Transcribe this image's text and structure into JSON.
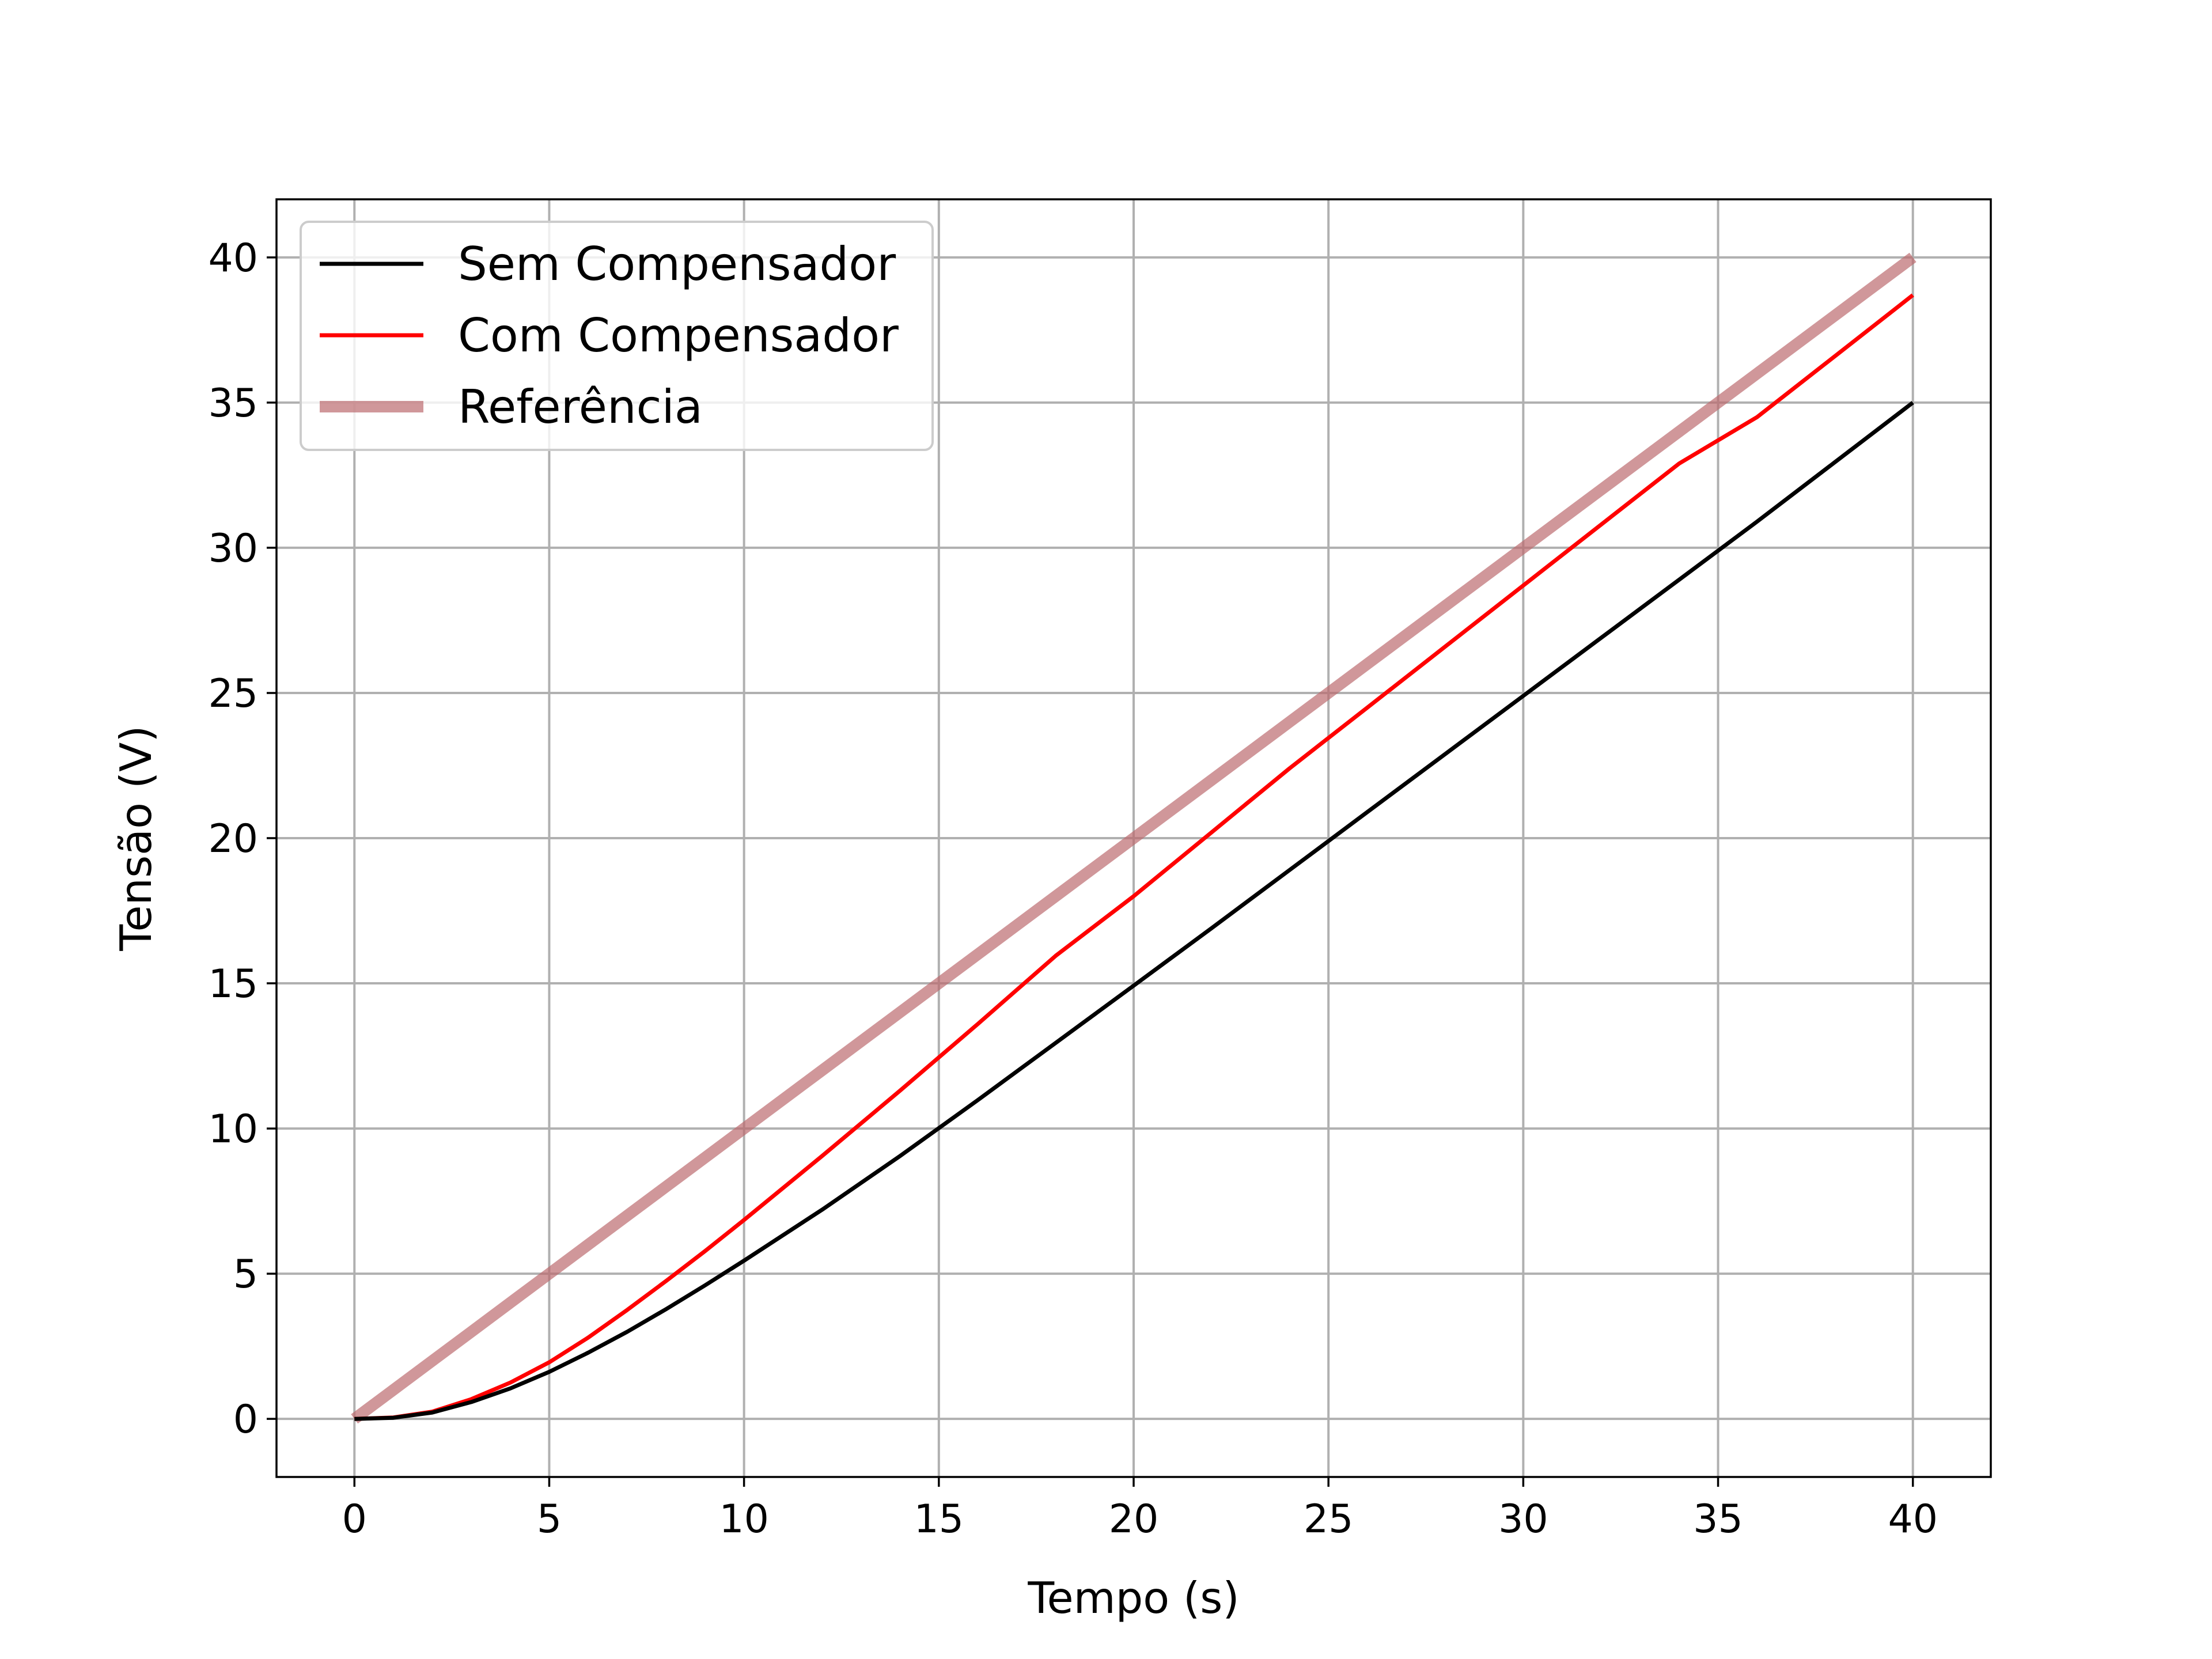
{
  "chart_data": {
    "type": "line",
    "xlabel": "Tempo (s)",
    "ylabel": "Tensão (V)",
    "xlim": [
      -2,
      42
    ],
    "ylim": [
      -2,
      42
    ],
    "x_ticks": [
      "0",
      "5",
      "10",
      "15",
      "20",
      "25",
      "30",
      "35",
      "40"
    ],
    "y_ticks": [
      "0",
      "5",
      "10",
      "15",
      "20",
      "25",
      "30",
      "35",
      "40"
    ],
    "grid": true,
    "legend_position": "top-left",
    "x": [
      0,
      1,
      2,
      3,
      4,
      5,
      6,
      7,
      8,
      9,
      10,
      12,
      14,
      16,
      18,
      20,
      22,
      24,
      26,
      28,
      30,
      32,
      34,
      36,
      38,
      40
    ],
    "series": [
      {
        "name": "Sem Compensador",
        "color": "#000000",
        "values": [
          0,
          0.04,
          0.22,
          0.58,
          1.05,
          1.62,
          2.28,
          3.0,
          3.78,
          4.6,
          5.45,
          7.2,
          9.05,
          10.98,
          12.95,
          14.92,
          16.9,
          18.9,
          20.9,
          22.9,
          24.9,
          26.9,
          28.9,
          30.9,
          32.95,
          35.0
        ]
      },
      {
        "name": "Com Compensador",
        "color": "#ff0000",
        "values": [
          0,
          0.05,
          0.25,
          0.68,
          1.25,
          1.95,
          2.8,
          3.75,
          4.75,
          5.78,
          6.85,
          9.05,
          11.3,
          13.6,
          15.95,
          18.0,
          20.2,
          22.4,
          24.5,
          26.6,
          28.7,
          30.8,
          32.9,
          34.5,
          36.6,
          38.7
        ]
      },
      {
        "name": "Referência",
        "color": "#bc6b6f",
        "opacity": 0.7,
        "values": [
          0,
          1,
          2,
          3,
          4,
          5,
          6,
          7,
          8,
          9,
          10,
          12,
          14,
          16,
          18,
          20,
          22,
          24,
          26,
          28,
          30,
          32,
          34,
          36,
          38,
          40
        ]
      }
    ]
  }
}
